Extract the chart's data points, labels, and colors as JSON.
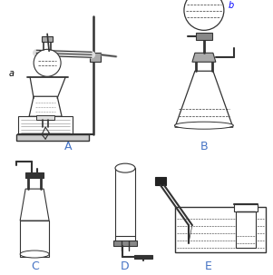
{
  "background_color": "#ffffff",
  "label_A": "A",
  "label_B": "B",
  "label_C": "C",
  "label_D": "D",
  "label_E": "E",
  "label_a": "a",
  "label_b": "b",
  "line_color": "#333333",
  "label_color": "#4472c4",
  "fig_width": 3.01,
  "fig_height": 3.03,
  "dpi": 100
}
